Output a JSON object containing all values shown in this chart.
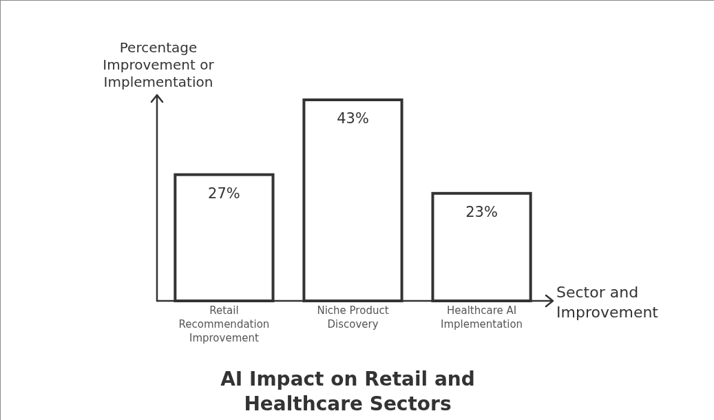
{
  "chart_data": {
    "type": "bar",
    "title": "AI Impact on Retail and Healthcare Sectors",
    "xlabel": "Sector and Improvement",
    "ylabel": "Percentage Improvement or Implementation",
    "categories": [
      "Retail Recommendation Improvement",
      "Niche Product Discovery",
      "Healthcare AI Implementation"
    ],
    "values": [
      27,
      43,
      23
    ],
    "value_labels": [
      "27%",
      "43%",
      "23%"
    ],
    "color": "#ffffff"
  }
}
